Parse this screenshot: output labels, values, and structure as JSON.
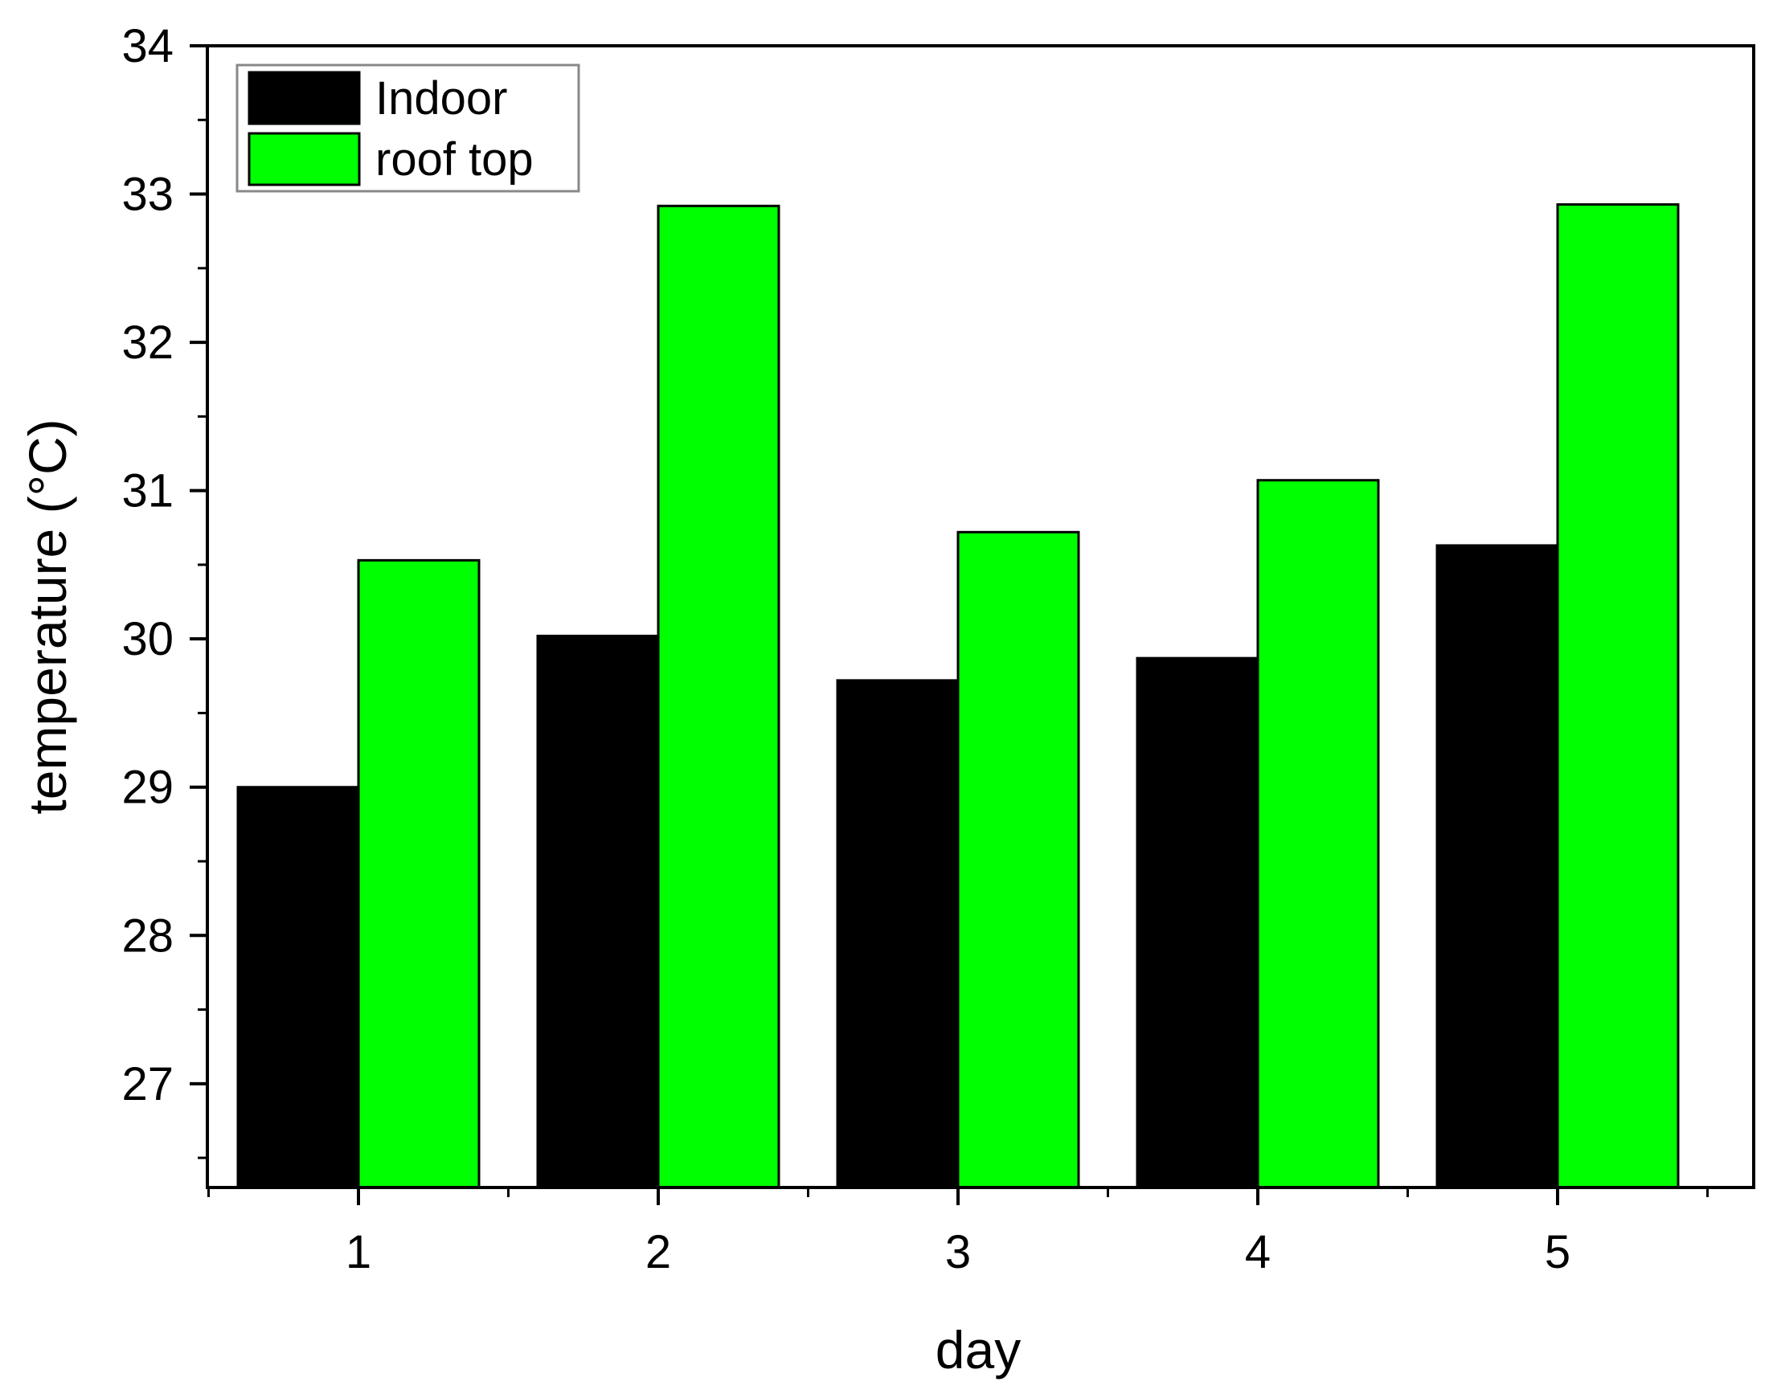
{
  "chart_data": {
    "type": "bar",
    "title": "",
    "xlabel": "day",
    "ylabel": "temperature (°C)",
    "categories": [
      "1",
      "2",
      "3",
      "4",
      "5"
    ],
    "series": [
      {
        "name": "Indoor",
        "values": [
          29.0,
          30.02,
          29.72,
          29.87,
          30.63
        ],
        "color": "#000000"
      },
      {
        "name": "roof top",
        "values": [
          30.53,
          32.92,
          30.72,
          31.07,
          32.93
        ],
        "color": "#00ff00"
      }
    ],
    "ylim": [
      26.3,
      34
    ],
    "yticks": [
      "27",
      "28",
      "29",
      "30",
      "31",
      "32",
      "33",
      "34"
    ],
    "grid": false,
    "legend": "top-left"
  }
}
